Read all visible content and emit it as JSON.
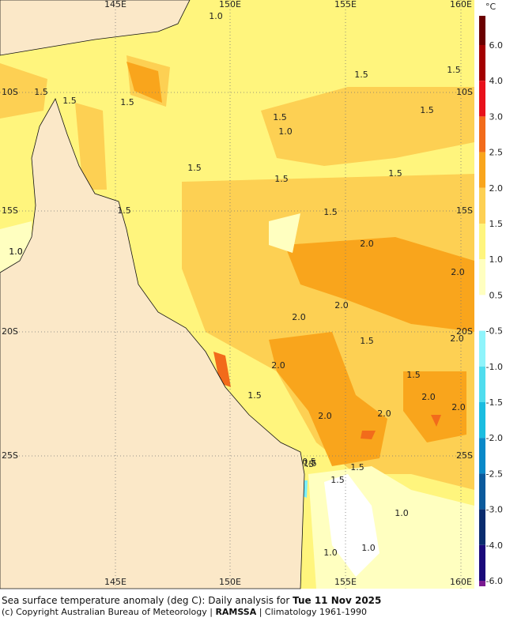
{
  "map": {
    "lon_labels": [
      "145E",
      "150E",
      "155E",
      "160E"
    ],
    "lat_labels": [
      "10S",
      "15S",
      "20S",
      "25S"
    ],
    "contour_labels": [
      "1.0",
      "1.5",
      "1.5",
      "1.5",
      "1.5",
      "1.5",
      "1.0",
      "1.5",
      "1.5",
      "1.5",
      "1.5",
      "1.0",
      "1.5",
      "1.5",
      "1.5",
      "2.0",
      "2.0",
      "2.0",
      "2.0",
      "2.0",
      "1.5",
      "2.0",
      "1.5",
      "1.5",
      "2.0",
      "2.0",
      "1.5",
      "2.0",
      "2.0",
      "1.5",
      "1.5",
      ".5",
      "1.0",
      "1.0",
      "1.0",
      "0.5",
      "1.0"
    ],
    "colorbar": {
      "unit": "°C",
      "labels": [
        "6.0",
        "4.0",
        "3.0",
        "2.5",
        "2.0",
        "1.5",
        "1.0",
        "0.5",
        "-0.5",
        "-1.0",
        "-1.5",
        "-2.0",
        "-2.5",
        "-3.0",
        "-4.0",
        "-6.0"
      ]
    }
  },
  "caption": {
    "line1": "Sea surface temperature anomaly (deg C): Daily analysis for ",
    "date": "Tue 11 Nov 2025",
    "line2a": "(c) Copyright Australian Bureau of Meteorology | ",
    "line2b": "RAMSSA",
    "line2c": " | Climatology 1961-1990"
  }
}
